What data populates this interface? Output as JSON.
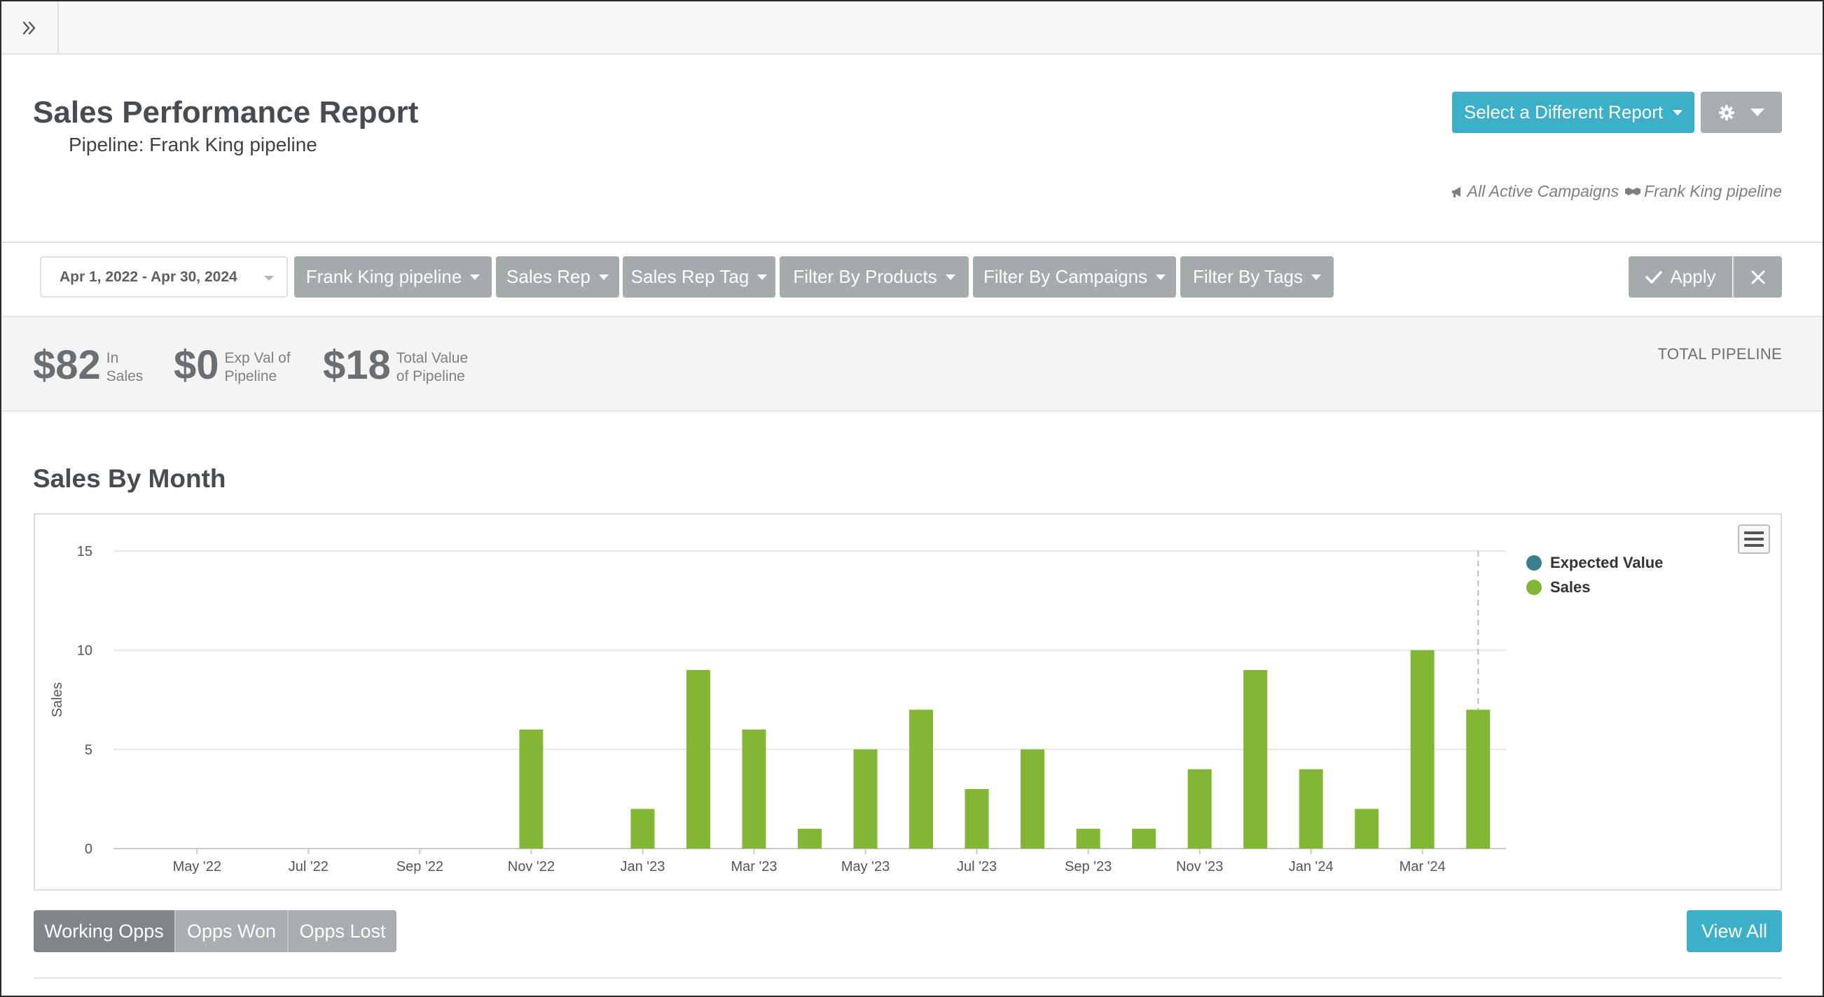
{
  "topbar": {
    "expand_icon": "double-chevron-right-icon"
  },
  "header": {
    "title": "Sales Performance Report",
    "subtitle": "Pipeline: Frank King pipeline",
    "select_report_label": "Select a Different Report",
    "settings_icon": "gear-icon",
    "campaigns_context": "All Active Campaigns",
    "pipeline_context": "Frank King pipeline"
  },
  "filters": {
    "date_range": "Apr 1, 2022 - Apr 30, 2024",
    "buttons": [
      "Frank King pipeline",
      "Sales Rep",
      "Sales Rep Tag",
      "Filter By Products",
      "Filter By Campaigns",
      "Filter By Tags"
    ],
    "apply_label": "Apply"
  },
  "summary": {
    "in_sales_value": "$82",
    "in_sales_label_1": "In",
    "in_sales_label_2": "Sales",
    "exp_val_value": "$0",
    "exp_val_label_1": "Exp Val of",
    "exp_val_label_2": "Pipeline",
    "total_value_value": "$18",
    "total_value_label_1": "Total Value",
    "total_value_label_2": "of Pipeline",
    "total_pipeline_label": "TOTAL PIPELINE"
  },
  "chart_section": {
    "title": "Sales By Month"
  },
  "chart_data": {
    "type": "bar",
    "title": "Sales By Month",
    "ylabel": "Sales",
    "xlabel": "",
    "ylim": [
      0,
      15
    ],
    "yticks": [
      0,
      5,
      10,
      15
    ],
    "categories": [
      "Apr '22",
      "May '22",
      "Jun '22",
      "Jul '22",
      "Aug '22",
      "Sep '22",
      "Oct '22",
      "Nov '22",
      "Dec '22",
      "Jan '23",
      "Feb '23",
      "Mar '23",
      "Apr '23",
      "May '23",
      "Jun '23",
      "Jul '23",
      "Aug '23",
      "Sep '23",
      "Oct '23",
      "Nov '23",
      "Dec '23",
      "Jan '24",
      "Feb '24",
      "Mar '24",
      "Apr '24"
    ],
    "tick_labels": [
      "May '22",
      "Jul '22",
      "Sep '22",
      "Nov '22",
      "Jan '23",
      "Mar '23",
      "May '23",
      "Jul '23",
      "Sep '23",
      "Nov '23",
      "Jan '24",
      "Mar '24"
    ],
    "series": [
      {
        "name": "Expected Value",
        "color": "#3a7f8c",
        "values": [
          0,
          0,
          0,
          0,
          0,
          0,
          0,
          0,
          0,
          0,
          0,
          0,
          0,
          0,
          0,
          0,
          0,
          0,
          0,
          0,
          0,
          0,
          0,
          0,
          0
        ]
      },
      {
        "name": "Sales",
        "color": "#84b636",
        "values": [
          0,
          0,
          0,
          0,
          0,
          0,
          0,
          6,
          0,
          2,
          9,
          6,
          1,
          5,
          7,
          3,
          5,
          1,
          1,
          4,
          9,
          4,
          2,
          10,
          7
        ]
      }
    ],
    "grid": true,
    "legend": "top-right"
  },
  "tabs": [
    "Working Opps",
    "Opps Won",
    "Opps Lost"
  ],
  "view_all_label": "View All",
  "colors": {
    "accent": "#3cb0c9",
    "filter_button": "#a5aaad",
    "sales_bar": "#84b636",
    "expected_value": "#3a7f8c"
  }
}
